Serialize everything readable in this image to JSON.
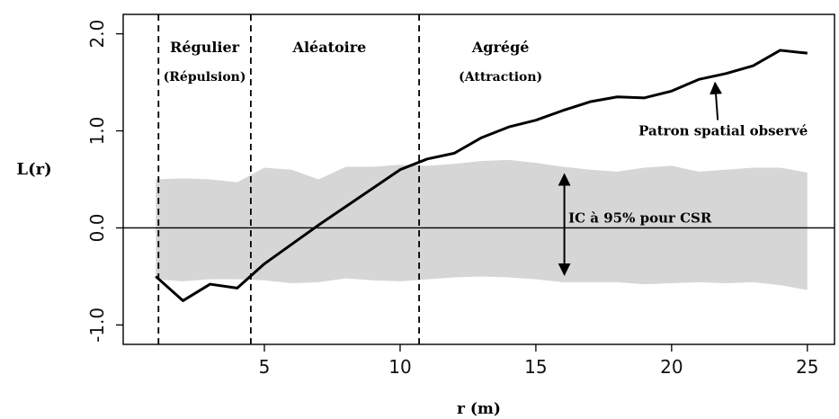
{
  "chart_data": {
    "type": "line",
    "title": "",
    "xlabel": "r (m)",
    "ylabel": "L(r)",
    "xlim": [
      -0.2,
      26.0
    ],
    "ylim": [
      -1.2,
      2.2
    ],
    "x_ticks": [
      5,
      10,
      15,
      20,
      25
    ],
    "x_tick_labels": [
      "5",
      "10",
      "15",
      "20",
      "25"
    ],
    "y_ticks": [
      -1.0,
      0.0,
      1.0,
      2.0
    ],
    "y_tick_labels": [
      "-1.0",
      "0.0",
      "1.0",
      "2.0"
    ],
    "grid": false,
    "reference_line_y": 0.0,
    "series": [
      {
        "name": "Patron spatial observé",
        "style": "line",
        "x": [
          1,
          2,
          3,
          4,
          5,
          6,
          7,
          8,
          9,
          10,
          11,
          12,
          13,
          14,
          15,
          16,
          17,
          18,
          19,
          20,
          21,
          22,
          23,
          24,
          25
        ],
        "y": [
          -0.5,
          -0.75,
          -0.58,
          -0.62,
          -0.37,
          -0.17,
          0.03,
          0.22,
          0.41,
          0.6,
          0.71,
          0.77,
          0.93,
          1.04,
          1.11,
          1.21,
          1.3,
          1.35,
          1.34,
          1.41,
          1.53,
          1.59,
          1.67,
          1.83,
          1.8
        ]
      }
    ],
    "envelope": {
      "name": "IC à 95% pour CSR",
      "x": [
        1,
        2,
        3,
        4,
        5,
        6,
        7,
        8,
        9,
        10,
        11,
        12,
        13,
        14,
        15,
        16,
        17,
        18,
        19,
        20,
        21,
        22,
        23,
        24,
        25
      ],
      "upper": [
        0.5,
        0.51,
        0.5,
        0.47,
        0.62,
        0.6,
        0.5,
        0.63,
        0.63,
        0.65,
        0.64,
        0.66,
        0.69,
        0.7,
        0.67,
        0.63,
        0.6,
        0.58,
        0.62,
        0.64,
        0.58,
        0.6,
        0.62,
        0.62,
        0.57
      ],
      "lower": [
        -0.53,
        -0.55,
        -0.53,
        -0.53,
        -0.54,
        -0.57,
        -0.56,
        -0.52,
        -0.54,
        -0.55,
        -0.53,
        -0.51,
        -0.5,
        -0.51,
        -0.53,
        -0.56,
        -0.56,
        -0.56,
        -0.58,
        -0.57,
        -0.56,
        -0.57,
        -0.56,
        -0.59,
        -0.64
      ],
      "color": "#d6d6d6"
    },
    "vertical_dividers": [
      1.1,
      4.5,
      10.7
    ],
    "region_labels": [
      {
        "label": "Régulier",
        "sublabel": "(Répulsion)",
        "x": 2.8
      },
      {
        "label": "Aléatoire",
        "sublabel": "",
        "x": 7.4
      },
      {
        "label": "Agrégé",
        "sublabel": "(Attraction)",
        "x": 13.7
      }
    ],
    "annotations": {
      "observed_label": "Patron spatial observé",
      "observed_arrow_tip": {
        "x": 21.6,
        "y": 1.55
      },
      "observed_label_pos": {
        "x": 21.9,
        "y": 1.0
      },
      "ci_label": "IC à 95% pour CSR",
      "ci_arrow_x": 16.05,
      "ci_arrow_from_y": 0.57,
      "ci_arrow_to_y": -0.5,
      "ci_label_pos": {
        "x": 16.2,
        "y": 0.1
      }
    },
    "colors": {
      "line": "#000000",
      "envelope": "#d6d6d6",
      "axis": "#000000"
    }
  }
}
